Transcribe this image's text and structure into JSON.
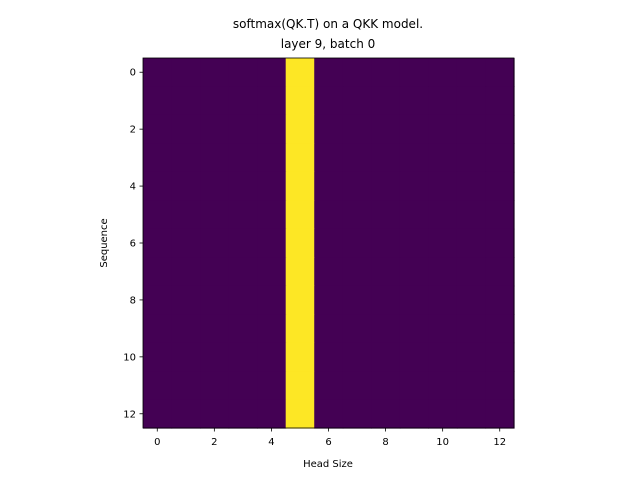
{
  "chart_data": {
    "type": "heatmap",
    "title": [
      "softmax(QK.T) on a QKK model.",
      "layer 9, batch 0"
    ],
    "xlabel": "Head Size",
    "ylabel": "Sequence",
    "n_rows": 13,
    "n_cols": 13,
    "xlim": [
      -0.5,
      12.5
    ],
    "ylim": [
      12.5,
      -0.5
    ],
    "y_inverted": true,
    "xticks": [
      0,
      2,
      4,
      6,
      8,
      10,
      12
    ],
    "yticks": [
      0,
      2,
      4,
      6,
      8,
      10,
      12
    ],
    "colormap": "viridis",
    "color_low": "#440154",
    "color_high": "#fde725",
    "values": [
      [
        0,
        0,
        0,
        0,
        0,
        1,
        0,
        0,
        0,
        0,
        0,
        0,
        0
      ],
      [
        0,
        0,
        0,
        0,
        0,
        1,
        0,
        0,
        0,
        0,
        0,
        0,
        0
      ],
      [
        0,
        0,
        0,
        0,
        0,
        1,
        0,
        0,
        0,
        0,
        0,
        0,
        0
      ],
      [
        0,
        0,
        0,
        0,
        0,
        1,
        0,
        0,
        0,
        0,
        0,
        0,
        0
      ],
      [
        0,
        0,
        0,
        0,
        0,
        1,
        0,
        0,
        0,
        0,
        0,
        0,
        0
      ],
      [
        0,
        0,
        0,
        0,
        0,
        1,
        0,
        0,
        0,
        0,
        0,
        0,
        0
      ],
      [
        0,
        0,
        0,
        0,
        0,
        1,
        0,
        0,
        0,
        0,
        0,
        0,
        0
      ],
      [
        0,
        0,
        0,
        0,
        0,
        1,
        0,
        0,
        0,
        0,
        0,
        0,
        0
      ],
      [
        0,
        0,
        0,
        0,
        0,
        1,
        0,
        0,
        0,
        0,
        0,
        0,
        0
      ],
      [
        0,
        0,
        0,
        0,
        0,
        1,
        0,
        0,
        0,
        0,
        0,
        0,
        0
      ],
      [
        0,
        0,
        0,
        0,
        0,
        1,
        0,
        0,
        0,
        0,
        0,
        0,
        0
      ],
      [
        0,
        0,
        0,
        0,
        0,
        1,
        0,
        0,
        0,
        0,
        0,
        0,
        0
      ],
      [
        0,
        0,
        0,
        0,
        0,
        1,
        0,
        0,
        0,
        0,
        0,
        0,
        0
      ]
    ]
  }
}
